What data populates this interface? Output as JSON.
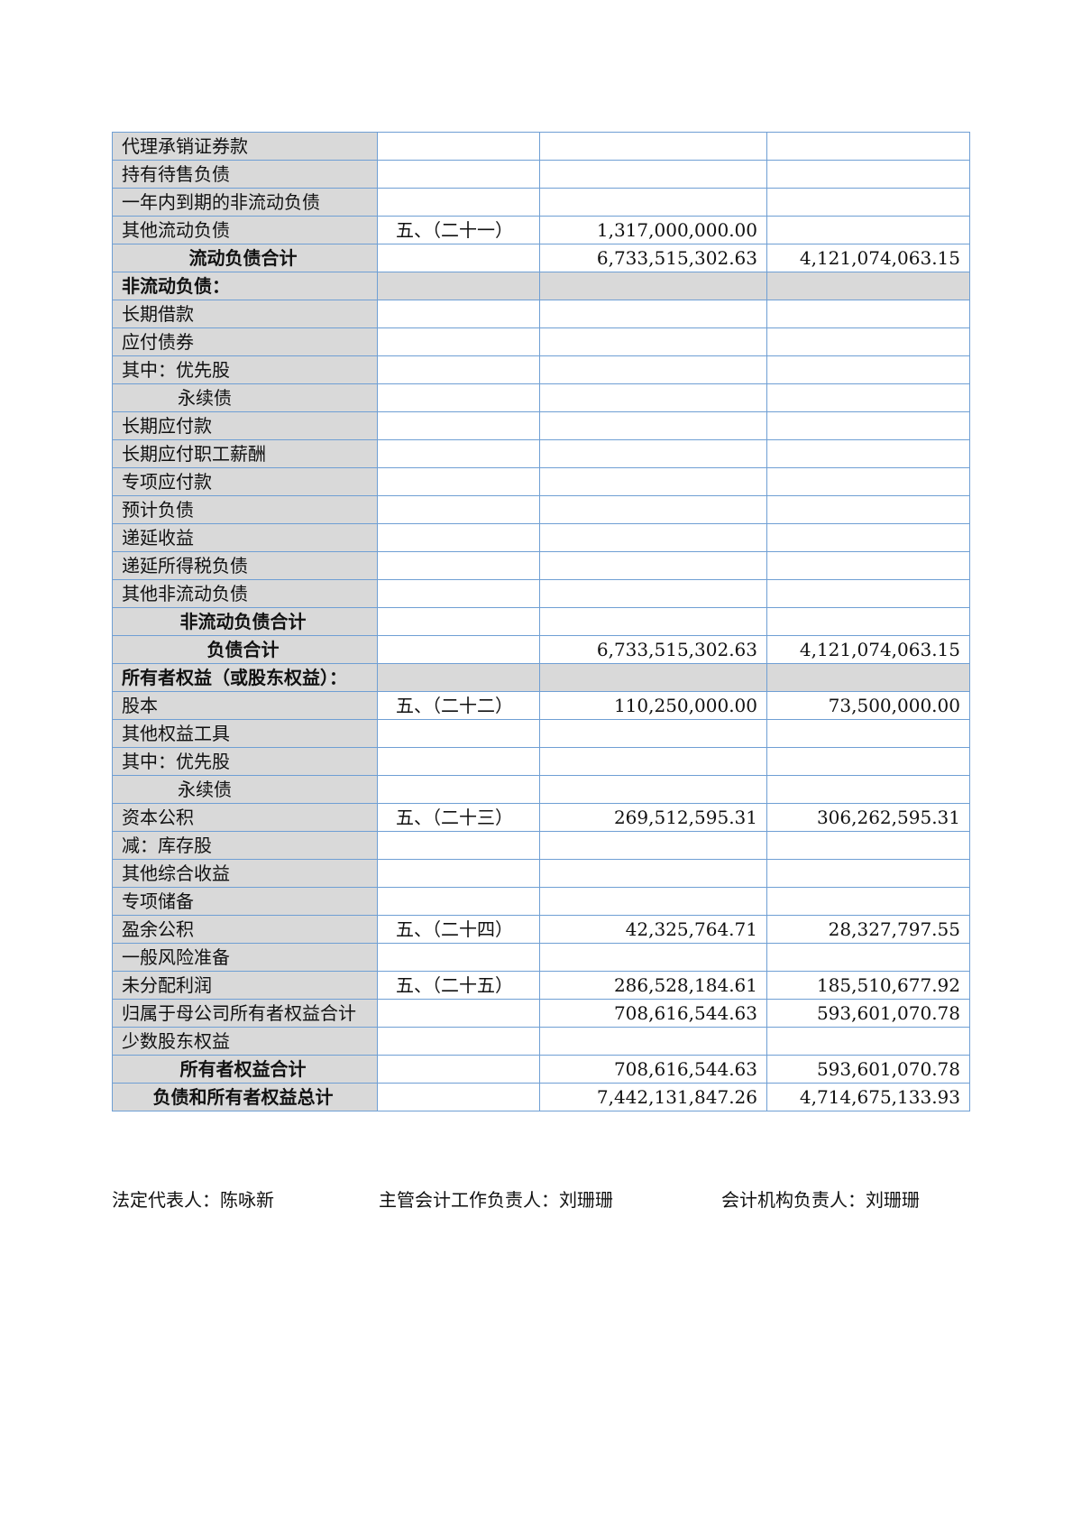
{
  "table": {
    "rows": [
      [
        "代理承销证券款",
        null,
        null,
        null
      ],
      [
        "持有待售负债",
        null,
        null,
        null
      ],
      [
        "一年内到期的非流动负债",
        null,
        null,
        null
      ],
      [
        "其他流动负债",
        "五、（二十一）",
        "1,317,000,000.00",
        null
      ],
      [
        "流动负债合计",
        null,
        "6,733,515,302.63",
        "4,121,074,063.15"
      ],
      [
        "非流动负债：",
        null,
        null,
        null
      ],
      [
        "长期借款",
        null,
        null,
        null
      ],
      [
        "应付债券",
        null,
        null,
        null
      ],
      [
        "其中：优先股",
        null,
        null,
        null
      ],
      [
        "永续债",
        null,
        null,
        null
      ],
      [
        "长期应付款",
        null,
        null,
        null
      ],
      [
        "长期应付职工薪酬",
        null,
        null,
        null
      ],
      [
        "专项应付款",
        null,
        null,
        null
      ],
      [
        "预计负债",
        null,
        null,
        null
      ],
      [
        "递延收益",
        null,
        null,
        null
      ],
      [
        "递延所得税负债",
        null,
        null,
        null
      ],
      [
        "其他非流动负债",
        null,
        null,
        null
      ],
      [
        "非流动负债合计",
        null,
        null,
        null
      ],
      [
        "负债合计",
        null,
        "6,733,515,302.63",
        "4,121,074,063.15"
      ],
      [
        "所有者权益（或股东权益）：",
        null,
        null,
        null
      ],
      [
        "股本",
        "五、（二十二）",
        "110,250,000.00",
        "73,500,000.00"
      ],
      [
        "其他权益工具",
        null,
        null,
        null
      ],
      [
        "其中：优先股",
        null,
        null,
        null
      ],
      [
        "永续债",
        null,
        null,
        null
      ],
      [
        "资本公积",
        "五、（二十三）",
        "269,512,595.31",
        "306,262,595.31"
      ],
      [
        "减：库存股",
        null,
        null,
        null
      ],
      [
        "其他综合收益",
        null,
        null,
        null
      ],
      [
        "专项储备",
        null,
        null,
        null
      ],
      [
        "盈余公积",
        "五、（二十四）",
        "42,325,764.71",
        "28,327,797.55"
      ],
      [
        "一般风险准备",
        null,
        null,
        null
      ],
      [
        "未分配利润",
        "五、（二十五）",
        "286,528,184.61",
        "185,510,677.92"
      ],
      [
        "归属于母公司所有者权益合计",
        null,
        "708,616,544.63",
        "593,601,070.78"
      ],
      [
        "少数股东权益",
        null,
        null,
        null
      ],
      [
        "所有者权益合计",
        null,
        "708,616,544.63",
        "593,601,070.78"
      ],
      [
        "负债和所有者权益总计",
        null,
        "7,442,131,847.26",
        "4,714,675,133.93"
      ]
    ]
  },
  "footer": {
    "legal_rep": "法定代表人：陈咏新",
    "accounting_head": "主管会计工作负责人：刘珊珊",
    "agency_head": "会计机构负责人：刘珊珊"
  }
}
